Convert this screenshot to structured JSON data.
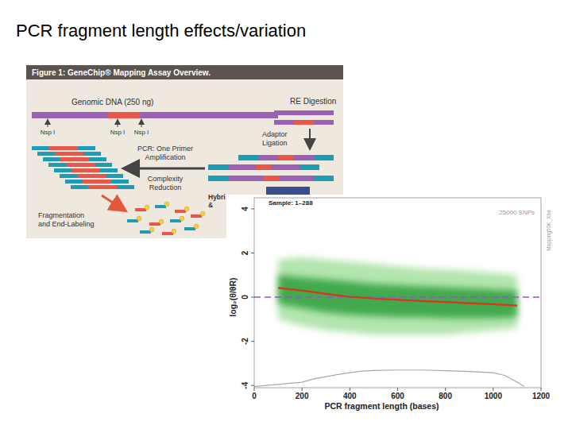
{
  "slide": {
    "title": "PCR fragment length effects/variation"
  },
  "diagram": {
    "title": "Figure 1: GeneChip® Mapping Assay Overview.",
    "genomic_dna": "Genomic DNA (250 ng)",
    "cut_sites": [
      "Nsp I",
      "Nsp I",
      "Nsp I"
    ],
    "re_digestion": "RE Digestion",
    "adaptor_ligation": [
      "Adaptor",
      "Ligation"
    ],
    "pcr": [
      "PCR: One Primer",
      "Amplification"
    ],
    "complexity": [
      "Complexity",
      "Reduction"
    ],
    "fragmentation": [
      "Fragmentation",
      "and End-Labeling"
    ],
    "hybridization": [
      "Hybri",
      "&"
    ]
  },
  "chart_data": {
    "type": "line",
    "x_label": "PCR fragment length (bases)",
    "y_label": "log₂(θ/θR)",
    "annotations": [
      {
        "text": "Sample: 1–288"
      },
      {
        "text": "25000 SNPs"
      },
      {
        "text": "Mapping50K_Xba"
      }
    ],
    "reference_line": {
      "y": 0,
      "color": "#9b4fd9",
      "line_style": "dashed"
    },
    "xlim": [
      0,
      1200
    ],
    "xticks": [
      0,
      200,
      400,
      600,
      800,
      1000,
      1200
    ],
    "ylim": [
      -4.1,
      4.5
    ],
    "yticks": [
      -4,
      -2,
      0,
      2,
      4
    ],
    "series": [
      {
        "type": "band",
        "color": "#a6e0a0",
        "x": [
          100,
          200,
          300,
          400,
          500,
          600,
          700,
          800,
          900,
          1000,
          1100
        ],
        "values": [
          1.7,
          1.8,
          1.7,
          1.6,
          1.5,
          1.4,
          1.3,
          1.25,
          1.2,
          1.1,
          1.0
        ],
        "lower": [
          -1.0,
          -1.3,
          -1.5,
          -1.6,
          -1.7,
          -1.7,
          -1.7,
          -1.7,
          -1.6,
          -1.5,
          -1.4
        ]
      },
      {
        "type": "band",
        "color": "#2f9f3c",
        "x": [
          100,
          200,
          300,
          400,
          500,
          600,
          700,
          800,
          900,
          1000,
          1100
        ],
        "values": [
          1.0,
          0.9,
          0.8,
          0.7,
          0.6,
          0.55,
          0.5,
          0.45,
          0.4,
          0.35,
          0.3
        ],
        "lower": [
          -0.3,
          -0.5,
          -0.7,
          -0.8,
          -0.85,
          -0.9,
          -0.9,
          -0.95,
          -0.95,
          -0.95,
          -0.9
        ]
      },
      {
        "type": "line",
        "color": "#e0301e",
        "line_style": "solid",
        "x": [
          100,
          200,
          300,
          400,
          500,
          600,
          700,
          800,
          900,
          1000,
          1100
        ],
        "values": [
          0.42,
          0.3,
          0.15,
          0.02,
          -0.06,
          -0.12,
          -0.17,
          -0.22,
          -0.27,
          -0.32,
          -0.38
        ]
      },
      {
        "type": "line",
        "color": "#a8a8a8",
        "line_style": "solid",
        "x": [
          0,
          50,
          100,
          150,
          200,
          250,
          300,
          350,
          400,
          450,
          500,
          600,
          700,
          800,
          900,
          1000,
          1050,
          1100,
          1130
        ],
        "values": [
          -4.05,
          -4.0,
          -3.95,
          -3.9,
          -3.85,
          -3.7,
          -3.6,
          -3.5,
          -3.42,
          -3.35,
          -3.32,
          -3.3,
          -3.3,
          -3.33,
          -3.37,
          -3.42,
          -3.55,
          -3.85,
          -4.05
        ]
      }
    ]
  }
}
